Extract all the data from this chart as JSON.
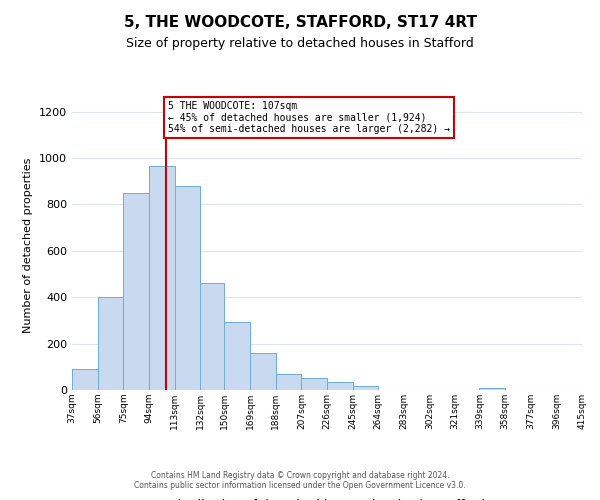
{
  "title": "5, THE WOODCOTE, STAFFORD, ST17 4RT",
  "subtitle": "Size of property relative to detached houses in Stafford",
  "xlabel": "Distribution of detached houses by size in Stafford",
  "ylabel": "Number of detached properties",
  "bar_edges": [
    37,
    56,
    75,
    94,
    113,
    132,
    150,
    169,
    188,
    207,
    226,
    245,
    264,
    283,
    302,
    321,
    339,
    358,
    377,
    396,
    415
  ],
  "bar_heights": [
    90,
    400,
    848,
    965,
    880,
    460,
    295,
    160,
    70,
    50,
    33,
    18,
    0,
    0,
    0,
    0,
    10,
    0,
    0,
    0,
    7
  ],
  "bar_color": "#c9d9f0",
  "bar_edge_color": "#6baed6",
  "property_line_x": 107,
  "property_line_color": "#cc0000",
  "annotation_text": "5 THE WOODCOTE: 107sqm\n← 45% of detached houses are smaller (1,924)\n54% of semi-detached houses are larger (2,282) →",
  "annotation_box_color": "#cc0000",
  "ylim": [
    0,
    1250
  ],
  "yticks": [
    0,
    200,
    400,
    600,
    800,
    1000,
    1200
  ],
  "footnote1": "Contains HM Land Registry data © Crown copyright and database right 2024.",
  "footnote2": "Contains public sector information licensed under the Open Government Licence v3.0.",
  "bg_color": "#ffffff",
  "grid_color": "#dce6f1",
  "title_fontsize": 11,
  "subtitle_fontsize": 9,
  "ylabel_fontsize": 8,
  "xlabel_fontsize": 9,
  "tick_labels": [
    "37sqm",
    "56sqm",
    "75sqm",
    "94sqm",
    "113sqm",
    "132sqm",
    "150sqm",
    "169sqm",
    "188sqm",
    "207sqm",
    "226sqm",
    "245sqm",
    "264sqm",
    "283sqm",
    "302sqm",
    "321sqm",
    "339sqm",
    "358sqm",
    "377sqm",
    "396sqm",
    "415sqm"
  ]
}
